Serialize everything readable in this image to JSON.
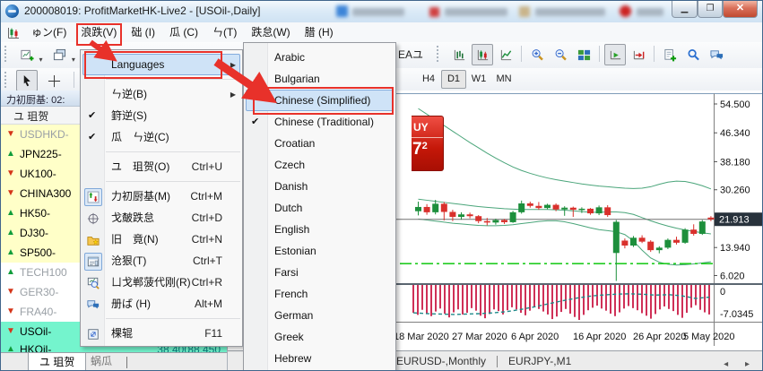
{
  "window": {
    "title": "200008019: ProfitMarketHK-Live2 - [USOil-,Daily]",
    "controls": {
      "minimize": "—",
      "restore": "❐",
      "close": "✕"
    }
  },
  "menubar": {
    "items": [
      {
        "key": "file",
        "label": "ゅン(F)"
      },
      {
        "key": "view",
        "label": "浪跌(V)",
        "annotated": true
      },
      {
        "key": "insert",
        "label": "础 (I)"
      },
      {
        "key": "charts",
        "label": "瓜 (C)"
      },
      {
        "key": "tools",
        "label": "ㄣ(T)"
      },
      {
        "key": "window",
        "label": "跌怠(W)"
      },
      {
        "key": "help",
        "label": "腊 (H)"
      }
    ]
  },
  "toolbar": {
    "ea_label": "EAユ",
    "right_icons": [
      "bars",
      "candles",
      "linechart",
      "sep",
      "zoom-in",
      "zoom-out",
      "tile",
      "sep",
      "autoscroll",
      "shift",
      "sep",
      "new-order",
      "search",
      "chat"
    ],
    "active_icons": [
      "candles",
      "autoscroll"
    ],
    "timeframes": [
      "H4",
      "D1",
      "W1",
      "MN"
    ],
    "active_timeframe": "D1"
  },
  "view_menu": {
    "items": [
      {
        "label": "Languages",
        "arrow": true,
        "highlight": true
      },
      {
        "sep": true
      },
      {
        "label": "ㄣ逆(B)",
        "arrow": true
      },
      {
        "label": "篈逆(S)",
        "checked": true
      },
      {
        "label": "瓜　ㄣ逆(C)",
        "checked": true
      },
      {
        "sep": true
      },
      {
        "label": "ユ　珇贺(O)",
        "shortcut": "Ctrl+U"
      },
      {
        "sep": true
      },
      {
        "label": "力初厨基(M)",
        "shortcut": "Ctrl+M",
        "icon": "market-watch",
        "icon_active": true
      },
      {
        "label": "戈皶跌怠",
        "shortcut": "Ctrl+D",
        "icon": "data-window"
      },
      {
        "label": "旧　竟(N)",
        "shortcut": "Ctrl+N",
        "icon": "navigator"
      },
      {
        "label": "沧狠(T)",
        "shortcut": "Ctrl+T",
        "icon": "terminal",
        "icon_active": true
      },
      {
        "label": "ㄩ戈郸菠代刚(R)",
        "shortcut": "Ctrl+R",
        "icon": "tester"
      },
      {
        "label": "册ば (H)",
        "shortcut": "Alt+M",
        "icon": "chat"
      },
      {
        "sep": true
      },
      {
        "label": "棵辊",
        "shortcut": "F11",
        "icon": "fullscreen"
      }
    ]
  },
  "language_submenu": {
    "items": [
      "Arabic",
      "Bulgarian",
      "Chinese (Simplified)",
      "Chinese (Traditional)",
      "Croatian",
      "Czech",
      "Danish",
      "Dutch",
      "English",
      "Estonian",
      "Farsi",
      "French",
      "German",
      "Greek",
      "Hebrew"
    ],
    "highlighted": "Chinese (Simplified)",
    "checked": "Chinese (Traditional)"
  },
  "market_watch": {
    "title": "力初厨基: 02:",
    "column_header": "ユ 珇贺",
    "symbols": [
      {
        "name": "USDHKD-",
        "dir": "down",
        "row": "yellow",
        "dim": true
      },
      {
        "name": "JPN225-",
        "dir": "up",
        "row": "yellow"
      },
      {
        "name": "UK100-",
        "dir": "down",
        "row": "yellow"
      },
      {
        "name": "CHINA300",
        "dir": "down",
        "row": "yellow"
      },
      {
        "name": "HK50-",
        "dir": "up",
        "row": "yellow"
      },
      {
        "name": "DJ30-",
        "dir": "up",
        "row": "yellow"
      },
      {
        "name": "SP500-",
        "dir": "up",
        "row": "yellow"
      },
      {
        "name": "TECH100",
        "dir": "up",
        "row": "white",
        "dim": true
      },
      {
        "name": "GER30-",
        "dir": "down",
        "row": "white",
        "dim": true
      },
      {
        "name": "FRA40-",
        "dir": "down",
        "row": "white",
        "dim": true
      },
      {
        "name": "USOil-",
        "dir": "down",
        "row": "aqua"
      },
      {
        "name": "HKOil-",
        "dir": "up",
        "row": "aqua",
        "bid": "38.400",
        "ask": "38.450",
        "half": true
      }
    ],
    "tabs": [
      {
        "label": "ユ 珇贺",
        "active": true
      },
      {
        "label": "蜗瓜",
        "active": false
      }
    ]
  },
  "chart": {
    "buy_widget": {
      "label_fragment": "UY",
      "price_big": "7",
      "price_sup": "2"
    },
    "tabs": [
      "EURUSD-,Monthly",
      "EURJPY-,M1"
    ],
    "tab_arrows": "◂ ▸"
  },
  "chart_data": {
    "type": "candlestick",
    "symbol": "USOil-,Daily",
    "price_ticks": [
      "54.500",
      "46.340",
      "38.180",
      "30.260",
      "21.913",
      "13.940",
      "6.020"
    ],
    "current_price": "21.913",
    "current_price_value": 21.913,
    "support_level": 9.4,
    "x_ticks": [
      {
        "label": "18 Mar 2020",
        "x": 213
      },
      {
        "label": "27 Mar 2020",
        "x": 278
      },
      {
        "label": "6 Apr 2020",
        "x": 344
      },
      {
        "label": "16 Apr 2020",
        "x": 413
      },
      {
        "label": "26 Apr 2020",
        "x": 480
      },
      {
        "label": "5 May 2020",
        "x": 536
      }
    ],
    "candles": [
      [
        24.2,
        26.9,
        23.0,
        25.4
      ],
      [
        25.4,
        26.2,
        23.2,
        23.9
      ],
      [
        23.9,
        27.4,
        23.3,
        26.3
      ],
      [
        26.3,
        26.8,
        21.6,
        24.0
      ],
      [
        24.0,
        24.6,
        21.4,
        22.6
      ],
      [
        22.6,
        23.9,
        21.8,
        23.3
      ],
      [
        23.3,
        23.8,
        22.2,
        22.8
      ],
      [
        22.8,
        23.1,
        20.8,
        21.4
      ],
      [
        21.4,
        22.3,
        20.2,
        21.0
      ],
      [
        21.0,
        22.1,
        20.4,
        21.7
      ],
      [
        21.7,
        22.0,
        20.6,
        21.1
      ],
      [
        21.1,
        24.3,
        20.9,
        23.9
      ],
      [
        23.9,
        27.2,
        23.5,
        26.4
      ],
      [
        26.4,
        26.9,
        25.2,
        25.7
      ],
      [
        25.7,
        26.8,
        24.6,
        25.1
      ],
      [
        25.1,
        26.3,
        24.8,
        26.0
      ],
      [
        26.0,
        26.4,
        24.2,
        24.7
      ],
      [
        24.7,
        25.6,
        22.9,
        25.2
      ],
      [
        25.2,
        25.5,
        22.6,
        24.6
      ],
      [
        24.6,
        25.3,
        23.7,
        24.9
      ],
      [
        24.9,
        25.1,
        23.2,
        23.6
      ],
      [
        23.6,
        25.8,
        23.1,
        25.3
      ],
      [
        25.3,
        25.9,
        22.6,
        23.1
      ],
      [
        12.4,
        21.7,
        4.5,
        21.2
      ],
      [
        15.9,
        16.5,
        13.7,
        14.5
      ],
      [
        14.5,
        17.2,
        14.1,
        16.7
      ],
      [
        16.7,
        17.4,
        15.2,
        15.6
      ],
      [
        15.6,
        16.0,
        12.7,
        13.2
      ],
      [
        13.2,
        14.3,
        12.3,
        13.9
      ],
      [
        13.9,
        16.5,
        13.5,
        16.1
      ],
      [
        16.1,
        17.0,
        14.8,
        15.3
      ],
      [
        15.3,
        19.4,
        15.0,
        19.0
      ],
      [
        19.0,
        20.5,
        17.3,
        17.8
      ],
      [
        17.8,
        21.7,
        17.5,
        21.3
      ],
      [
        22.4,
        22.8,
        21.4,
        21.9
      ]
    ],
    "bands": {
      "upper": [
        53.2,
        51.6,
        50.0,
        48.4,
        46.8,
        45.2,
        43.6,
        42.1,
        40.6,
        39.2,
        37.9,
        36.7,
        35.7,
        34.9,
        34.2,
        33.6,
        33.1,
        32.7,
        32.3,
        31.9,
        31.6,
        31.3,
        31.1,
        30.9,
        30.7,
        30.6,
        30.7,
        31.1,
        31.8,
        32.4,
        32.7,
        32.6,
        32.1,
        31.4,
        30.5
      ],
      "middle": [
        27.6,
        27.3,
        27.0,
        26.7,
        26.4,
        26.1,
        25.8,
        25.5,
        25.3,
        25.1,
        24.9,
        24.8,
        24.7,
        24.7,
        24.7,
        24.7,
        24.6,
        24.5,
        24.3,
        24.1,
        23.9,
        23.9,
        24.0,
        24.0,
        23.8,
        23.3,
        22.4,
        21.5,
        20.7,
        20.0,
        19.4,
        18.9,
        18.5,
        18.1,
        17.8
      ],
      "lower": [
        22.0,
        21.7,
        21.4,
        21.1,
        20.8,
        20.6,
        20.4,
        20.2,
        20.1,
        20.1,
        20.2,
        20.4,
        20.7,
        21.0,
        21.3,
        21.5,
        21.5,
        21.2,
        20.7,
        20.1,
        19.5,
        19.0,
        18.7,
        18.4,
        17.6,
        15.8,
        13.2,
        11.0,
        9.8,
        9.2,
        9.0,
        9.1,
        9.3,
        9.6,
        9.9
      ]
    },
    "indicator": {
      "zero_label": "0",
      "min_label": "-7.0345",
      "bars": [
        6.6,
        7.1,
        5.9,
        6.7,
        7.4,
        6.3,
        5.6,
        6.8,
        7.7,
        6.5,
        5.8,
        7.0,
        6.6,
        5.5,
        6.1,
        7.3,
        7.9,
        6.9,
        5.8,
        6.2,
        7.0,
        6.0,
        5.3,
        5.8,
        6.6,
        7.2,
        6.1,
        5.2,
        5.7,
        6.3,
        7.0,
        8.1,
        7.5,
        6.4,
        5.7,
        6.8,
        7.6,
        8.3,
        7.1,
        6.0,
        5.4,
        4.9,
        5.6,
        6.1,
        6.8,
        7.4,
        6.5,
        5.6,
        5.0,
        5.5,
        6.0,
        6.7,
        7.3,
        8.0,
        6.9,
        5.8,
        5.1,
        5.7,
        6.2,
        7.1,
        7.8,
        6.6,
        5.4,
        4.8,
        5.9,
        6.5,
        7.0
      ],
      "signal": [
        -6.6,
        -6.8,
        -6.9,
        -7.0,
        -6.9,
        -6.8,
        -6.6,
        -6.3,
        -5.8,
        -5.2,
        -4.5,
        -3.8,
        -3.2,
        -2.7,
        -2.4,
        -2.2,
        -2.1,
        -2.2,
        -2.4,
        -2.3,
        -2.6,
        -3.2,
        -2.9
      ]
    },
    "colors": {
      "up": "#1d8f3c",
      "down": "#d9302c",
      "band": "#4aa57a",
      "support": "#22cc22",
      "bar": "#cf3057",
      "signal": "#1e8a8a",
      "price_tag_bg": "#28323c"
    }
  }
}
